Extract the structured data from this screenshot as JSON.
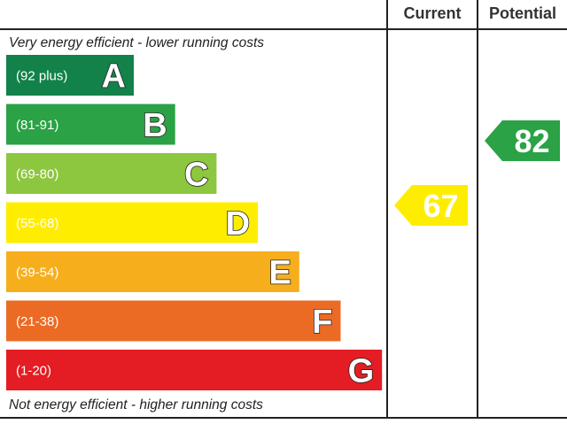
{
  "headers": {
    "current": "Current",
    "potential": "Potential"
  },
  "notes": {
    "top": "Very energy efficient - lower running costs",
    "bottom": "Not energy efficient - higher running costs"
  },
  "chart_data": {
    "type": "bar",
    "categories": [
      "A",
      "B",
      "C",
      "D",
      "E",
      "F",
      "G"
    ],
    "bands": [
      {
        "letter": "A",
        "range": "(92 plus)",
        "min": 92,
        "max": 100,
        "color": "#12824a"
      },
      {
        "letter": "B",
        "range": "(81-91)",
        "min": 81,
        "max": 91,
        "color": "#2aa245"
      },
      {
        "letter": "C",
        "range": "(69-80)",
        "min": 69,
        "max": 80,
        "color": "#8dc63f"
      },
      {
        "letter": "D",
        "range": "(55-68)",
        "min": 55,
        "max": 68,
        "color": "#ffed00"
      },
      {
        "letter": "E",
        "range": "(39-54)",
        "min": 39,
        "max": 54,
        "color": "#f7ae1d"
      },
      {
        "letter": "F",
        "range": "(21-38)",
        "min": 21,
        "max": 38,
        "color": "#ec6b24"
      },
      {
        "letter": "G",
        "range": "(1-20)",
        "min": 1,
        "max": 20,
        "color": "#e31d23"
      }
    ],
    "ratings": {
      "current": {
        "value": 67,
        "band": "D",
        "color": "#ffed00"
      },
      "potential": {
        "value": 82,
        "band": "B",
        "color": "#2aa245"
      }
    }
  }
}
